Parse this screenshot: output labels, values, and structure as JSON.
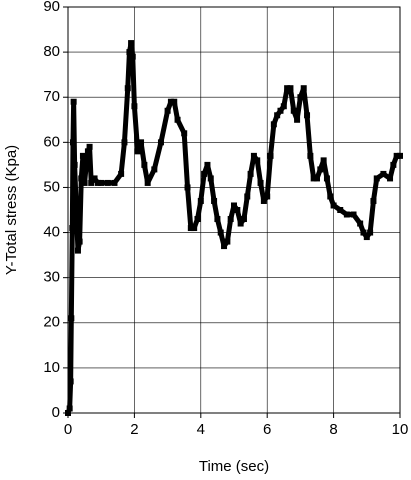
{
  "chart_data": {
    "type": "line",
    "x_label": "Time (sec)",
    "y_label": "Y-Total stress (Kpa)",
    "xlim": [
      0,
      10
    ],
    "xticks": [
      0,
      2,
      4,
      6,
      8,
      10
    ],
    "ylim": [
      0,
      90
    ],
    "yticks": [
      0,
      10,
      20,
      30,
      40,
      50,
      60,
      70,
      80,
      90
    ],
    "grid": true,
    "x": [
      0,
      0.05,
      0.08,
      0.1,
      0.13,
      0.15,
      0.17,
      0.2,
      0.25,
      0.3,
      0.35,
      0.4,
      0.45,
      0.5,
      0.55,
      0.6,
      0.65,
      0.7,
      0.8,
      0.9,
      1.0,
      1.2,
      1.4,
      1.6,
      1.7,
      1.8,
      1.85,
      1.9,
      1.95,
      2.0,
      2.1,
      2.2,
      2.3,
      2.4,
      2.6,
      2.8,
      3.0,
      3.1,
      3.2,
      3.3,
      3.5,
      3.6,
      3.7,
      3.8,
      3.9,
      4.0,
      4.1,
      4.2,
      4.3,
      4.4,
      4.5,
      4.6,
      4.7,
      4.8,
      4.9,
      5.0,
      5.1,
      5.2,
      5.3,
      5.4,
      5.5,
      5.6,
      5.7,
      5.8,
      5.9,
      6.0,
      6.1,
      6.2,
      6.3,
      6.4,
      6.5,
      6.6,
      6.7,
      6.8,
      6.9,
      7.0,
      7.1,
      7.2,
      7.3,
      7.4,
      7.5,
      7.6,
      7.7,
      7.8,
      7.9,
      8.0,
      8.2,
      8.4,
      8.6,
      8.8,
      8.9,
      9.0,
      9.1,
      9.2,
      9.3,
      9.5,
      9.7,
      9.8,
      9.9,
      10.0
    ],
    "series": [
      {
        "name": "Y-Total stress",
        "color": "#000000",
        "values": [
          0,
          1,
          7,
          21,
          41,
          60,
          69,
          55,
          45,
          36,
          38,
          52,
          57,
          51,
          55,
          58,
          59,
          51,
          52,
          51,
          51,
          51,
          51,
          53,
          60,
          72,
          80,
          82,
          79,
          68,
          58,
          60,
          55,
          51,
          54,
          60,
          67,
          69,
          69,
          65,
          62,
          50,
          41,
          41,
          43,
          47,
          53,
          55,
          52,
          47,
          43,
          40,
          37,
          38,
          43,
          46,
          45,
          42,
          43,
          48,
          53,
          57,
          56,
          51,
          47,
          48,
          57,
          64,
          66,
          67,
          68,
          72,
          72,
          67,
          65,
          70,
          72,
          66,
          57,
          52,
          52,
          54,
          56,
          52,
          48,
          46,
          45,
          44,
          44,
          42,
          40,
          39,
          40,
          47,
          52,
          53,
          52,
          55,
          57,
          57
        ]
      }
    ]
  }
}
